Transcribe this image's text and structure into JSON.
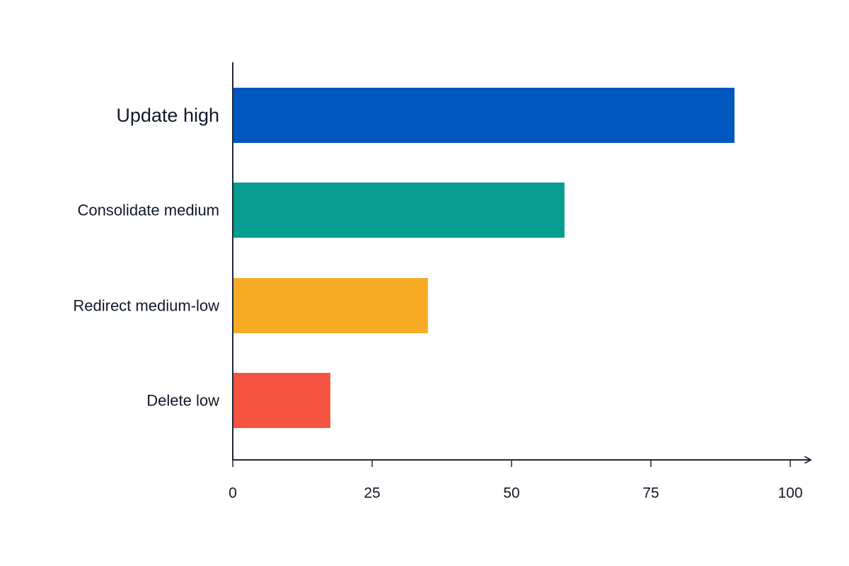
{
  "chart_data": {
    "type": "bar",
    "orientation": "horizontal",
    "title": "",
    "xlabel": "",
    "ylabel": "",
    "categories": [
      "Update high",
      "Consolidate medium",
      "Redirect medium-low",
      "Delete low"
    ],
    "values": [
      90,
      59.5,
      35,
      17.5
    ],
    "colors": [
      "#0057bd",
      "#069c8f",
      "#f7ab24",
      "#f65442"
    ],
    "xlim": [
      0,
      100
    ],
    "xticks": [
      0,
      25,
      50,
      75,
      100
    ],
    "xtick_labels": [
      "0",
      "25",
      "50",
      "75",
      "100"
    ],
    "grid": false,
    "legend": "none"
  }
}
